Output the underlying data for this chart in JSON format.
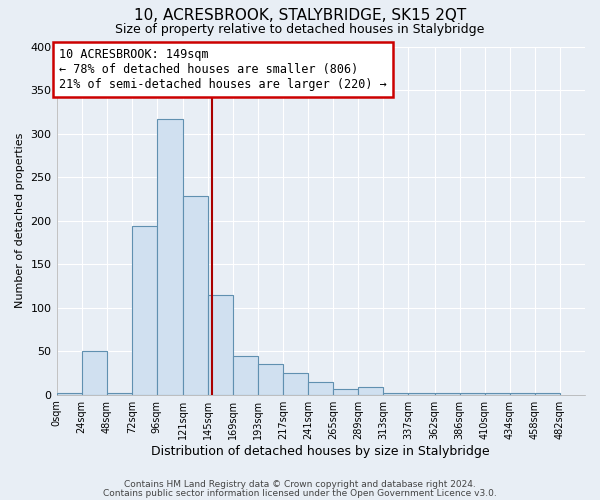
{
  "title": "10, ACRESBROOK, STALYBRIDGE, SK15 2QT",
  "subtitle": "Size of property relative to detached houses in Stalybridge",
  "xlabel": "Distribution of detached houses by size in Stalybridge",
  "ylabel": "Number of detached properties",
  "bar_edges": [
    0,
    24,
    48,
    72,
    96,
    121,
    145,
    169,
    193,
    217,
    241,
    265,
    289,
    313,
    337,
    362,
    386,
    410,
    434,
    458,
    482
  ],
  "bar_heights": [
    2,
    50,
    2,
    194,
    317,
    228,
    115,
    44,
    35,
    25,
    15,
    6,
    9,
    2,
    2,
    2,
    2,
    2,
    2,
    2
  ],
  "tick_labels": [
    "0sqm",
    "24sqm",
    "48sqm",
    "72sqm",
    "96sqm",
    "121sqm",
    "145sqm",
    "169sqm",
    "193sqm",
    "217sqm",
    "241sqm",
    "265sqm",
    "289sqm",
    "313sqm",
    "337sqm",
    "362sqm",
    "386sqm",
    "410sqm",
    "434sqm",
    "458sqm",
    "482sqm"
  ],
  "bar_color": "#d0e0f0",
  "bar_edge_color": "#6090b0",
  "vline_x": 149,
  "vline_color": "#aa0000",
  "annotation_title": "10 ACRESBROOK: 149sqm",
  "annotation_line1": "← 78% of detached houses are smaller (806)",
  "annotation_line2": "21% of semi-detached houses are larger (220) →",
  "annotation_box_color": "white",
  "annotation_box_edge": "#cc0000",
  "ylim": [
    0,
    400
  ],
  "yticks": [
    0,
    50,
    100,
    150,
    200,
    250,
    300,
    350,
    400
  ],
  "xlim_max": 506,
  "bg_color": "#e8eef5",
  "grid_color": "#ffffff",
  "footer1": "Contains HM Land Registry data © Crown copyright and database right 2024.",
  "footer2": "Contains public sector information licensed under the Open Government Licence v3.0."
}
